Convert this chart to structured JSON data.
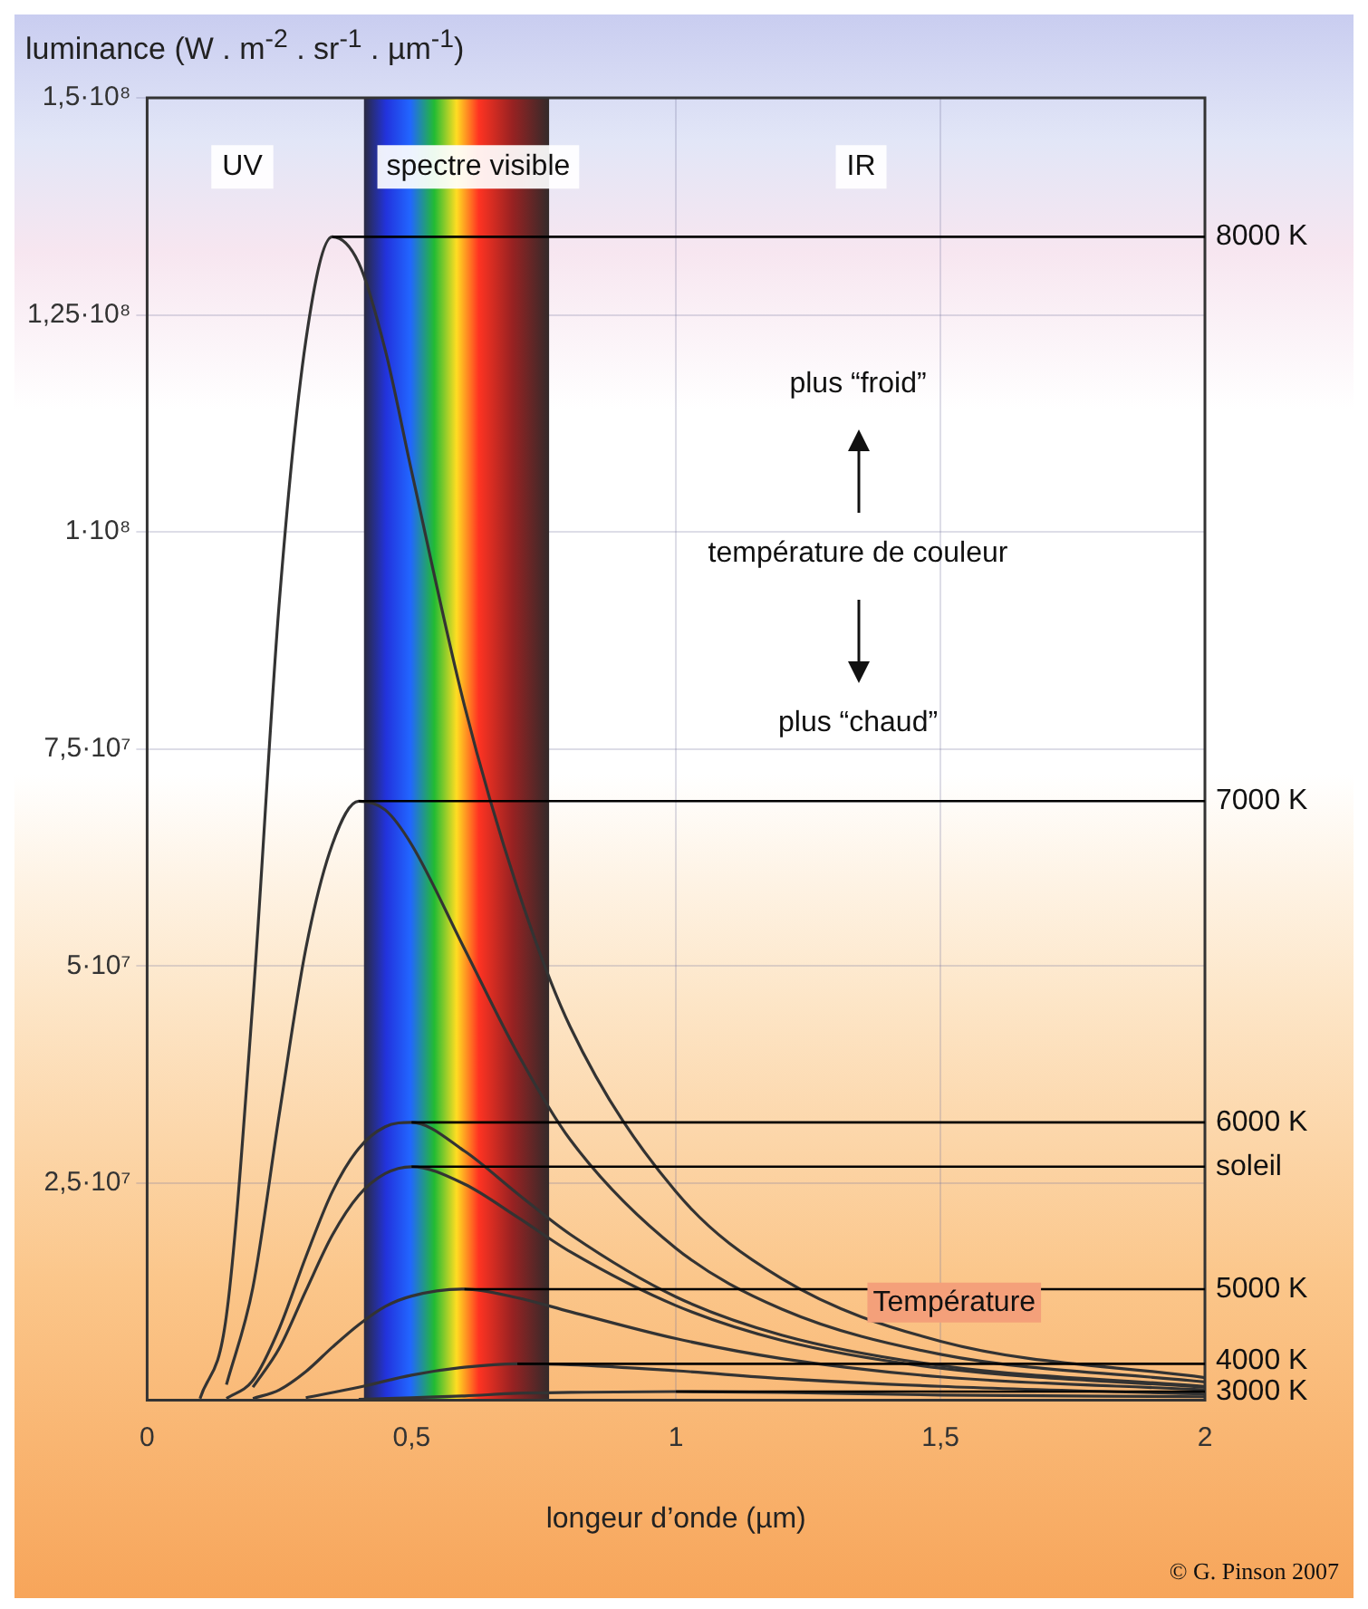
{
  "chart_data": {
    "type": "line",
    "ylabel": "luminance (W . m$^{-2}$ . sr$^{-1}$ . µm$^{-1}$)",
    "xlabel": "longeur d’onde (µm)",
    "xlim": [
      0,
      2
    ],
    "xticks": [
      0,
      {
        "value": 0.5,
        "label": "0,5"
      },
      1,
      {
        "value": 1.5,
        "label": "1,5"
      },
      2
    ],
    "ylim": [
      0,
      150000000
    ],
    "yticks": [
      {
        "value": 25000000,
        "label": "2,5·10⁷"
      },
      {
        "value": 50000000,
        "label": "5·10⁷"
      },
      {
        "value": 75000000,
        "label": "7,5·10⁷"
      },
      {
        "value": 100000000,
        "label": "1·10⁸"
      },
      {
        "value": 125000000,
        "label": "1,25·10⁸"
      },
      {
        "value": 150000000,
        "label": "1,5·10⁸"
      }
    ],
    "grid": true,
    "legend": false,
    "marker": "none",
    "line_style": "solid",
    "series": [
      {
        "color": "#333333",
        "x": [
          0.1,
          0.15,
          0.2,
          0.25,
          0.3,
          0.35,
          0.4,
          0.45,
          0.5,
          0.6,
          0.7,
          0.8,
          1.0,
          1.2,
          1.5,
          2.0
        ],
        "values": [
          200000,
          9800000,
          46000000,
          92000000,
          122000000,
          134000000,
          131000000,
          121000000,
          107000000,
          80000000,
          59000000,
          43000000,
          24000000,
          14000000,
          6800000,
          2600000
        ]
      },
      {
        "color": "#333333",
        "x": [
          0.15,
          0.2,
          0.25,
          0.3,
          0.35,
          0.4,
          0.45,
          0.5,
          0.6,
          0.7,
          0.8,
          1.0,
          1.2,
          1.5,
          2.0
        ],
        "values": [
          1800000,
          13000000,
          33000000,
          52000000,
          64000000,
          69000000,
          68000000,
          64000000,
          52000000,
          40000000,
          30000000,
          17500000,
          10500000,
          5300000,
          2100000
        ]
      },
      {
        "color": "#333333",
        "x": [
          0.15,
          0.2,
          0.25,
          0.3,
          0.35,
          0.4,
          0.45,
          0.5,
          0.6,
          0.7,
          0.8,
          1.0,
          1.2,
          1.5,
          2.0
        ],
        "values": [
          200000,
          2300000,
          8300000,
          16500000,
          24000000,
          29000000,
          31500000,
          32000000,
          28700000,
          23800000,
          19100000,
          11900000,
          7500000,
          4000000,
          1600000
        ]
      },
      {
        "color": "#333333",
        "x": [
          0.2,
          0.25,
          0.3,
          0.35,
          0.4,
          0.45,
          0.5,
          0.6,
          0.7,
          0.8,
          1.0,
          1.2,
          1.5,
          2.0
        ],
        "values": [
          1500000,
          6000000,
          12600000,
          19000000,
          23600000,
          26100000,
          26900000,
          24900000,
          21100000,
          17100000,
          10900000,
          6900000,
          3700000,
          1500000
        ]
      },
      {
        "color": "#333333",
        "x": [
          0.2,
          0.25,
          0.3,
          0.35,
          0.4,
          0.45,
          0.5,
          0.6,
          0.7,
          0.8,
          1.0,
          1.2,
          1.5,
          2.0
        ],
        "values": [
          200000,
          1200000,
          3300000,
          6100000,
          8700000,
          10800000,
          12000000,
          12800000,
          11800000,
          10200000,
          7100000,
          4800000,
          2700000,
          1200000
        ]
      },
      {
        "color": "#333333",
        "x": [
          0.3,
          0.4,
          0.5,
          0.6,
          0.7,
          0.8,
          1.0,
          1.2,
          1.5,
          2.0
        ],
        "values": [
          300000,
          1500000,
          2900000,
          3800000,
          4200000,
          4100000,
          3400000,
          2500000,
          1600000,
          700000
        ]
      },
      {
        "color": "#333333",
        "x": [
          0.4,
          0.5,
          0.6,
          0.7,
          0.8,
          1.0,
          1.2,
          1.5,
          2.0
        ],
        "values": [
          100000,
          300000,
          500000,
          800000,
          900000,
          1000000,
          900000,
          600000,
          400000
        ]
      }
    ],
    "bands": [
      {
        "axis": "x",
        "from": 0.41,
        "to": 0.76,
        "label": "spectre visible"
      }
    ],
    "ref_lines": [
      {
        "axis": "y",
        "value": 134000000,
        "label": "8000 K",
        "color": "#000000"
      },
      {
        "axis": "y",
        "value": 69000000,
        "label": "7000 K",
        "color": "#000000"
      },
      {
        "axis": "y",
        "value": 32000000,
        "label": "6000 K",
        "color": "#000000"
      },
      {
        "axis": "y",
        "value": 26900000,
        "label": "soleil",
        "color": "#000000"
      },
      {
        "axis": "y",
        "value": 12800000,
        "label": "5000 K",
        "color": "#000000"
      },
      {
        "axis": "y",
        "value": 4200000,
        "label": "4000 K",
        "color": "#000000"
      },
      {
        "axis": "y",
        "value": 1000000,
        "label": "3000 K",
        "color": "#000000"
      }
    ],
    "annotations": [
      "UV",
      "IR",
      "plus “froid”",
      "température de couleur",
      "plus “chaud”",
      "Température",
      "© G. Pinson 2007"
    ]
  }
}
